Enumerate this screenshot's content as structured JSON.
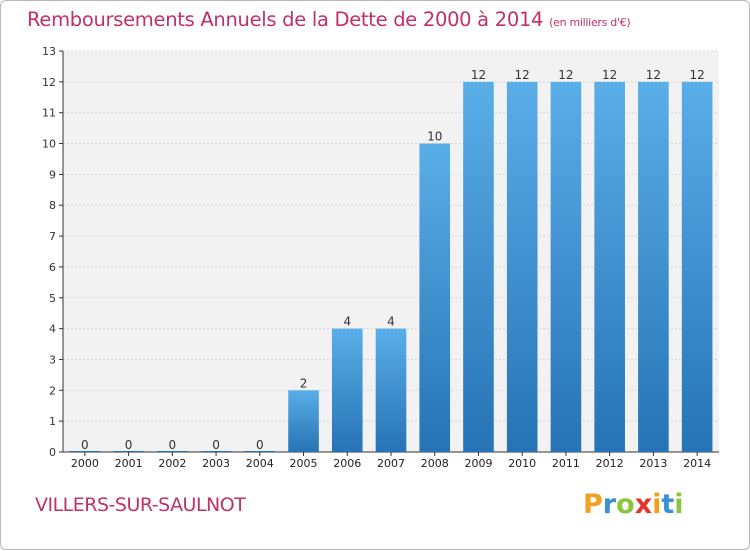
{
  "title": "Remboursements Annuels de la Dette de 2000 à 2014",
  "unit": "(en milliers d'€)",
  "commune": "VILLERS-SUR-SAULNOT",
  "logo": {
    "letters": [
      "P",
      "r",
      "o",
      "x",
      "i",
      "t",
      "i"
    ],
    "colors": [
      "#f2a01e",
      "#3b8fd4",
      "#8cc63e",
      "#e2342f",
      "#f2a01e",
      "#3b8fd4",
      "#8cc63e"
    ]
  },
  "chart_data": {
    "type": "bar",
    "title": "Remboursements Annuels de la Dette de 2000 à 2014",
    "xlabel": "",
    "ylabel": "",
    "categories": [
      "2000",
      "2001",
      "2002",
      "2003",
      "2004",
      "2005",
      "2006",
      "2007",
      "2008",
      "2009",
      "2010",
      "2011",
      "2012",
      "2013",
      "2014"
    ],
    "values": [
      0,
      0,
      0,
      0,
      0,
      2,
      4,
      4,
      10,
      12,
      12,
      12,
      12,
      12,
      12
    ],
    "value_labels": [
      "0",
      "0",
      "0",
      "0",
      "0",
      "2",
      "4",
      "4",
      "10",
      "12",
      "12",
      "12",
      "12",
      "12",
      "12"
    ],
    "ylim": [
      0,
      13
    ],
    "yticks": [
      0,
      1,
      2,
      3,
      4,
      5,
      6,
      7,
      8,
      9,
      10,
      11,
      12,
      13
    ],
    "ytick_labels": [
      "0",
      "1",
      "2",
      "3",
      "4",
      "5",
      "6",
      "7",
      "8",
      "9",
      "10",
      "11",
      "12",
      "13"
    ],
    "grid": true,
    "legend": "none",
    "bar_color_light": "#5aaee8",
    "bar_color_dark": "#2673b5",
    "plot_background": "#f2f2f2"
  }
}
